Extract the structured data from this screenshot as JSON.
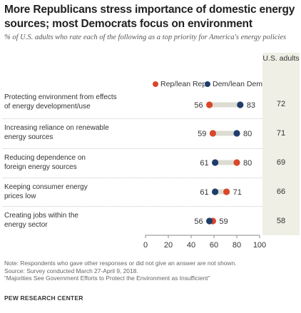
{
  "title": "More Republicans stress importance of domestic energy sources; most Democrats focus on environment",
  "subtitle": "% of U.S. adults who rate each of the following as a top priority for America's energy policies",
  "us_header": "U.S. adults",
  "notes": {
    "note": "Note: Respondents who gave other responses or did not give an answer are not shown.",
    "source": "Source: Survey conducted March 27-April 9, 2018.",
    "report": "“Majorities See Government Efforts to Protect the Environment as Insufficient”",
    "org": "PEW RESEARCH CENTER"
  },
  "colors": {
    "rep": "#d9472b",
    "dem": "#1f3d6b",
    "connector": "#dcdcd2",
    "us_band": "#efefe6"
  },
  "chart_data": {
    "type": "dot",
    "xlim": [
      0,
      100
    ],
    "x_ticks": [
      0,
      20,
      40,
      60,
      80,
      100
    ],
    "grid": false,
    "legend_placement": "top",
    "series": [
      {
        "name": "Rep/lean Rep",
        "values": [
          56,
          59,
          80,
          71,
          59
        ]
      },
      {
        "name": "Dem/lean Dem",
        "values": [
          83,
          80,
          61,
          61,
          56
        ]
      }
    ],
    "categories": [
      "Protecting environment from effects of energy development/use",
      "Increasing reliance on renewable energy sources",
      "Reducing dependence on foreign energy sources",
      "Keeping consumer energy prices low",
      "Creating jobs within the energy sector"
    ],
    "us_adults": [
      72,
      71,
      69,
      66,
      58
    ]
  },
  "rows": [
    {
      "line1": "Protecting environment from effects",
      "line2": "of energy development/use",
      "us": "72"
    },
    {
      "line1": "Increasing reliance on renewable",
      "line2": "energy sources",
      "us": "71"
    },
    {
      "line1": "Reducing dependence on",
      "line2": "foreign energy sources",
      "us": "69"
    },
    {
      "line1": "Keeping consumer energy",
      "line2": "prices low",
      "us": "66"
    },
    {
      "line1": "Creating jobs within the",
      "line2": "energy sector",
      "us": "58"
    }
  ]
}
